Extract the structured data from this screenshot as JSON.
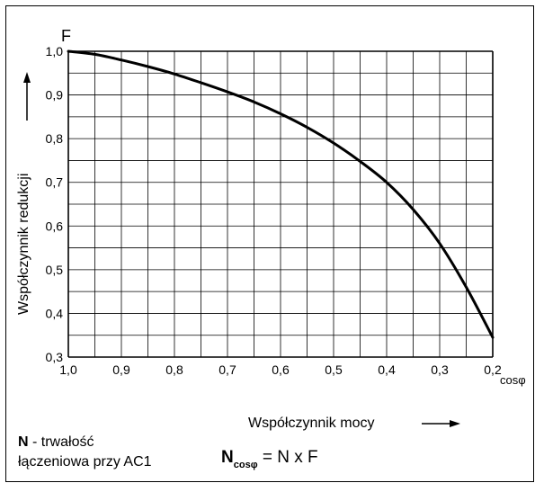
{
  "chart_data": {
    "type": "line",
    "y_symbol": "F",
    "ylabel": "Współczynnik redukcji",
    "xlabel": "Współczynnik mocy",
    "x_unit_label": "cosφ",
    "x_reversed": true,
    "xlim": [
      1.0,
      0.2
    ],
    "ylim": [
      0.3,
      1.0
    ],
    "x_ticks": [
      1.0,
      0.9,
      0.8,
      0.7,
      0.6,
      0.5,
      0.4,
      0.3,
      0.2
    ],
    "x_tick_labels": [
      "1,0",
      "0,9",
      "0,8",
      "0,7",
      "0,6",
      "0,5",
      "0,4",
      "0,3",
      "0,2"
    ],
    "y_ticks": [
      1.0,
      0.9,
      0.8,
      0.7,
      0.6,
      0.5,
      0.4,
      0.3
    ],
    "y_tick_labels": [
      "1,0",
      "0,9",
      "0,8",
      "0,7",
      "0,6",
      "0,5",
      "0,4",
      "0,3"
    ],
    "grid": true,
    "series": [
      {
        "x": [
          1.0,
          0.95,
          0.9,
          0.85,
          0.8,
          0.75,
          0.7,
          0.65,
          0.6,
          0.55,
          0.5,
          0.45,
          0.4,
          0.35,
          0.3,
          0.25,
          0.2
        ],
        "y": [
          1.0,
          0.993,
          0.98,
          0.965,
          0.948,
          0.928,
          0.907,
          0.884,
          0.857,
          0.826,
          0.79,
          0.748,
          0.7,
          0.638,
          0.56,
          0.46,
          0.345
        ]
      }
    ]
  },
  "legend_note": {
    "symbol": "N",
    "text_line1": " - trwałość",
    "text_line2": "łączeniowa przy AC1"
  },
  "formula": {
    "main": "N",
    "subscript": "cosφ",
    "rest": " = N x F"
  },
  "colors": {
    "line": "#000000",
    "grid": "#000000",
    "background": "#ffffff"
  }
}
